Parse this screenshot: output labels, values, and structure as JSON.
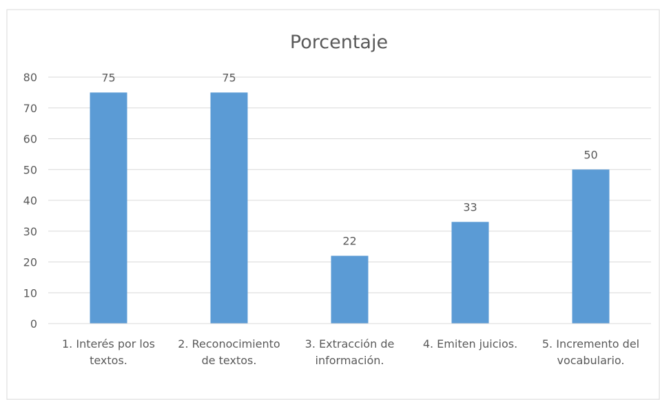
{
  "chart_data": {
    "type": "bar",
    "title": "Porcentaje",
    "categories": [
      "1. Interés por los textos.",
      "2. Reconocimiento de textos.",
      "3. Extracción de información.",
      "4. Emiten juicios.",
      "5. Incremento del vocabulario."
    ],
    "values": [
      75,
      75,
      22,
      33,
      50
    ],
    "color": "#5b9bd5",
    "ylim": [
      0,
      80
    ],
    "yticks": [
      0,
      10,
      20,
      30,
      40,
      50,
      60,
      70,
      80
    ],
    "grid": true
  }
}
